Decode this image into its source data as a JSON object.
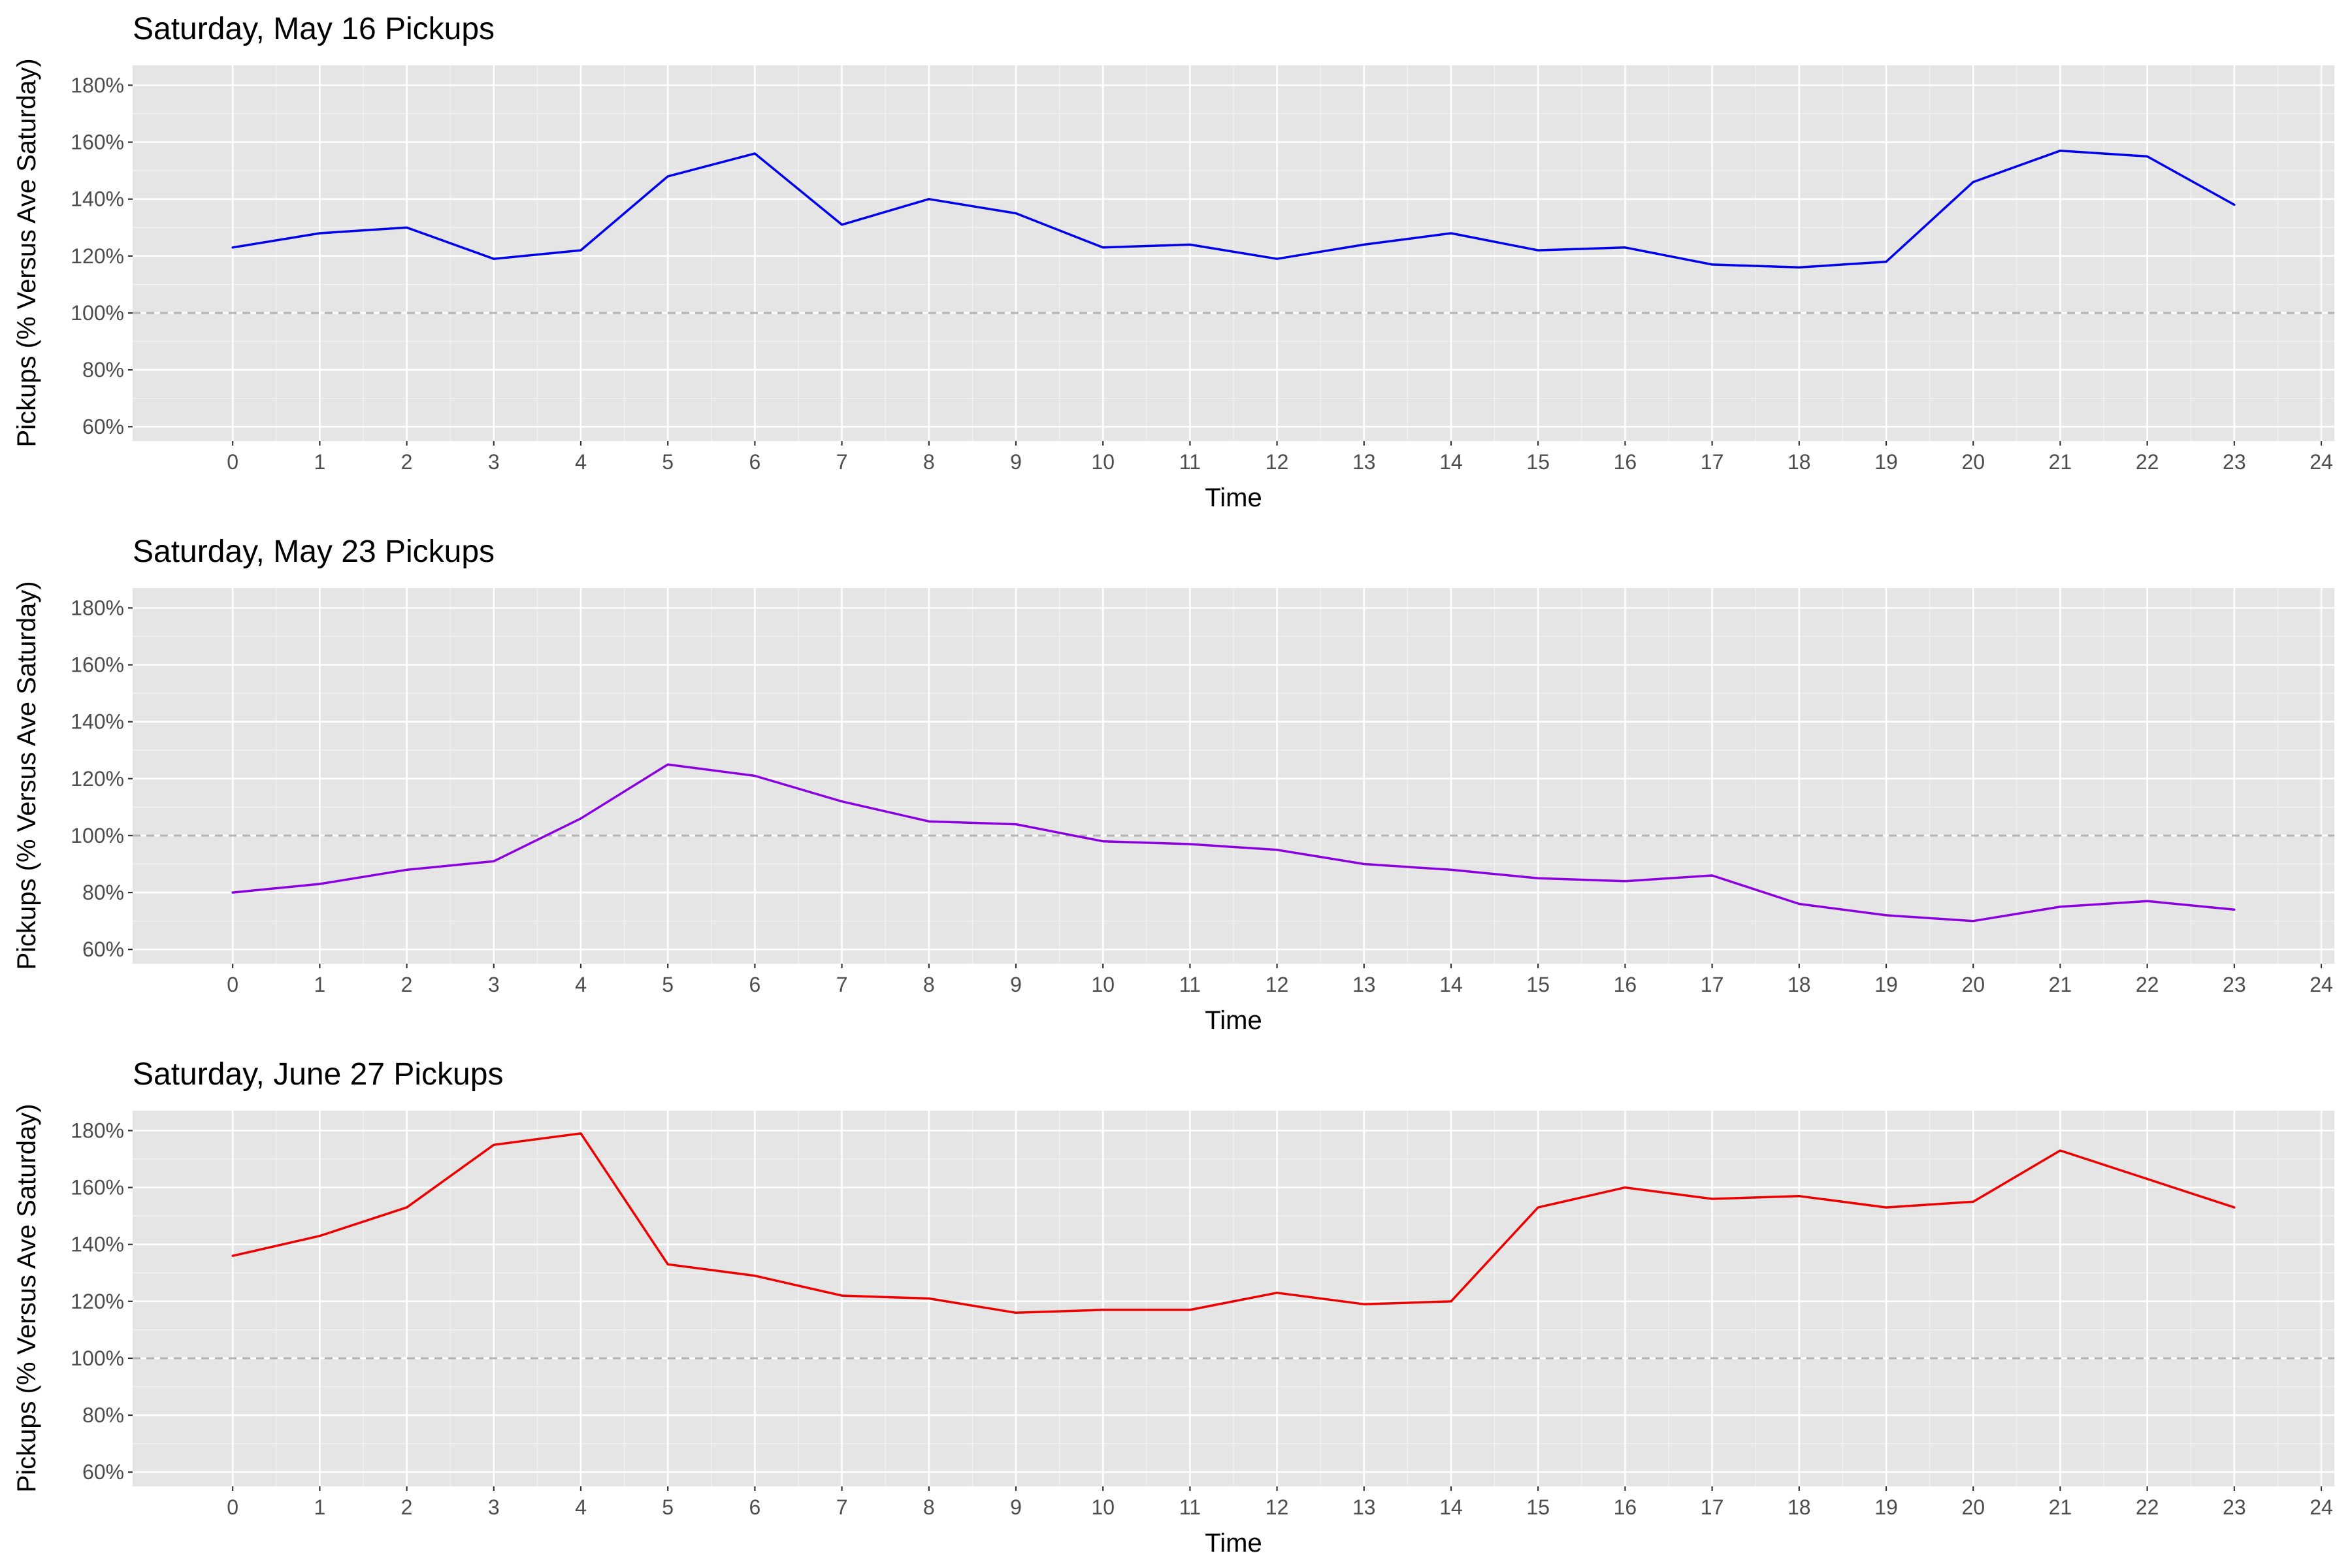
{
  "chart_data": [
    {
      "type": "line",
      "title": "Saturday, May 16 Pickups",
      "xlabel": "Time",
      "ylabel": "Pickups (% Versus Ave Saturday)",
      "xlim": [
        -1.15,
        24.15
      ],
      "ylim": [
        55,
        187
      ],
      "x_ticks": [
        0,
        1,
        2,
        3,
        4,
        5,
        6,
        7,
        8,
        9,
        10,
        11,
        12,
        13,
        14,
        15,
        16,
        17,
        18,
        19,
        20,
        21,
        22,
        23,
        24
      ],
      "y_ticks": [
        60,
        80,
        100,
        120,
        140,
        160,
        180
      ],
      "y_tick_labels": [
        "60%",
        "80%",
        "100%",
        "120%",
        "140%",
        "160%",
        "180%"
      ],
      "reference_line": 100,
      "grid": true,
      "color": "#0000ee",
      "series": [
        {
          "x": [
            0,
            1,
            2,
            3,
            4,
            5,
            6,
            7,
            8,
            9,
            10,
            11,
            12,
            13,
            14,
            15,
            16,
            17,
            18,
            19,
            20,
            21,
            22,
            23
          ],
          "values": [
            123,
            128,
            130,
            119,
            122,
            148,
            156,
            131,
            140,
            135,
            123,
            124,
            119,
            124,
            128,
            122,
            123,
            117,
            116,
            118,
            146,
            157,
            155,
            138
          ]
        }
      ]
    },
    {
      "type": "line",
      "title": "Saturday, May 23 Pickups",
      "xlabel": "Time",
      "ylabel": "Pickups (% Versus Ave Saturday)",
      "xlim": [
        -1.15,
        24.15
      ],
      "ylim": [
        55,
        187
      ],
      "x_ticks": [
        0,
        1,
        2,
        3,
        4,
        5,
        6,
        7,
        8,
        9,
        10,
        11,
        12,
        13,
        14,
        15,
        16,
        17,
        18,
        19,
        20,
        21,
        22,
        23,
        24
      ],
      "y_ticks": [
        60,
        80,
        100,
        120,
        140,
        160,
        180
      ],
      "y_tick_labels": [
        "60%",
        "80%",
        "100%",
        "120%",
        "140%",
        "160%",
        "180%"
      ],
      "reference_line": 100,
      "grid": true,
      "color": "#8b00e0",
      "series": [
        {
          "x": [
            0,
            1,
            2,
            3,
            4,
            5,
            6,
            7,
            8,
            9,
            10,
            11,
            12,
            13,
            14,
            15,
            16,
            17,
            18,
            19,
            20,
            21,
            22,
            23
          ],
          "values": [
            80,
            83,
            88,
            91,
            106,
            125,
            121,
            112,
            105,
            104,
            98,
            97,
            95,
            90,
            88,
            85,
            84,
            86,
            76,
            72,
            70,
            75,
            77,
            74
          ]
        }
      ]
    },
    {
      "type": "line",
      "title": "Saturday, June 27 Pickups",
      "xlabel": "Time",
      "ylabel": "Pickups (% Versus Ave Saturday)",
      "xlim": [
        -1.15,
        24.15
      ],
      "ylim": [
        55,
        187
      ],
      "x_ticks": [
        0,
        1,
        2,
        3,
        4,
        5,
        6,
        7,
        8,
        9,
        10,
        11,
        12,
        13,
        14,
        15,
        16,
        17,
        18,
        19,
        20,
        21,
        22,
        23,
        24
      ],
      "y_ticks": [
        60,
        80,
        100,
        120,
        140,
        160,
        180
      ],
      "y_tick_labels": [
        "60%",
        "80%",
        "100%",
        "120%",
        "140%",
        "160%",
        "180%"
      ],
      "reference_line": 100,
      "grid": true,
      "color": "#ee0000",
      "series": [
        {
          "x": [
            0,
            1,
            2,
            3,
            4,
            5,
            6,
            7,
            8,
            9,
            10,
            11,
            12,
            13,
            14,
            15,
            16,
            17,
            18,
            19,
            20,
            21,
            22,
            23
          ],
          "values": [
            136,
            143,
            153,
            175,
            179,
            133,
            129,
            122,
            121,
            116,
            117,
            117,
            123,
            119,
            120,
            153,
            160,
            156,
            157,
            153,
            155,
            173,
            163,
            153
          ]
        }
      ]
    }
  ]
}
